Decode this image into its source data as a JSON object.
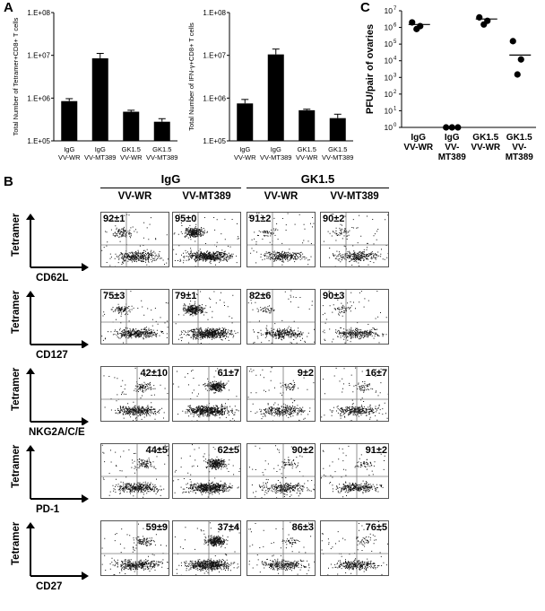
{
  "panels": {
    "a": "A",
    "b": "B",
    "c": "C"
  },
  "chart_data": [
    {
      "type": "bar",
      "panel": "A",
      "ylabel": "Total Number of Tetramer+CD8+ T cells",
      "yscale": "log",
      "ylim": [
        100000,
        100000000
      ],
      "yticks": [
        "1.E+05",
        "1.E+06",
        "1.E+07",
        "1.E+08"
      ],
      "categories": [
        [
          "IgG",
          "VV-WR"
        ],
        [
          "IgG",
          "VV-MT389"
        ],
        [
          "GK1.5",
          "VV-WR"
        ],
        [
          "GK1.5",
          "VV-MT389"
        ]
      ],
      "values": [
        850000,
        8500000,
        480000,
        280000
      ],
      "errors": [
        120000,
        2600000,
        40000,
        50000
      ]
    },
    {
      "type": "bar",
      "panel": "A",
      "ylabel": "Total Number of IFN-γ+CD8+ T cells",
      "yscale": "log",
      "ylim": [
        100000,
        100000000
      ],
      "yticks": [
        "1.E+05",
        "1.E+06",
        "1.E+07",
        "1.E+08"
      ],
      "categories": [
        [
          "IgG",
          "VV-WR"
        ],
        [
          "IgG",
          "VV-MT389"
        ],
        [
          "GK1.5",
          "VV-WR"
        ],
        [
          "GK1.5",
          "VV-MT389"
        ]
      ],
      "values": [
        750000,
        10500000,
        520000,
        340000
      ],
      "errors": [
        180000,
        3500000,
        30000,
        80000
      ]
    },
    {
      "type": "scatter",
      "panel": "C",
      "ylabel": "PFU/pair of ovaries",
      "yscale": "log",
      "ylim": [
        1,
        10000000
      ],
      "ytick_exponents": [
        "0",
        "1",
        "2",
        "3",
        "4",
        "5",
        "6",
        "7"
      ],
      "ytick_base": "10",
      "categories": [
        [
          "IgG",
          "VV-WR"
        ],
        [
          "IgG",
          "VV-",
          "MT389"
        ],
        [
          "GK1.5",
          "VV-WR"
        ],
        [
          "GK1.5",
          "VV-",
          "MT389"
        ]
      ],
      "points": [
        [
          2000000,
          1200000,
          800000
        ],
        [
          1,
          1,
          1
        ],
        [
          4000000,
          2500000,
          1500000
        ],
        [
          150000,
          12000,
          1500
        ]
      ],
      "means": [
        1500000,
        1,
        3200000,
        22000
      ]
    },
    {
      "type": "scatter",
      "panel": "B",
      "group_labels": [
        "IgG",
        "GK1.5"
      ],
      "column_labels": [
        "VV-WR",
        "VV-MT389",
        "VV-WR",
        "VV-MT389"
      ],
      "ylabel": "Tetramer",
      "rows": [
        {
          "marker": "CD62L",
          "values": [
            "92±1",
            "95±0",
            "91±2",
            "90±2"
          ],
          "label_pos": "top-left"
        },
        {
          "marker": "CD127",
          "values": [
            "75±3",
            "79±1",
            "82±6",
            "90±3"
          ],
          "label_pos": "top-left"
        },
        {
          "marker": "NKG2A/C/E",
          "values": [
            "42±10",
            "61±7",
            "9±2",
            "16±7"
          ],
          "label_pos": "top-right"
        },
        {
          "marker": "PD-1",
          "values": [
            "44±5",
            "62±5",
            "90±2",
            "91±2"
          ],
          "label_pos": "top-right"
        },
        {
          "marker": "CD27",
          "values": [
            "59±9",
            "37±4",
            "86±3",
            "76±5"
          ],
          "label_pos": "top-right"
        }
      ]
    }
  ]
}
